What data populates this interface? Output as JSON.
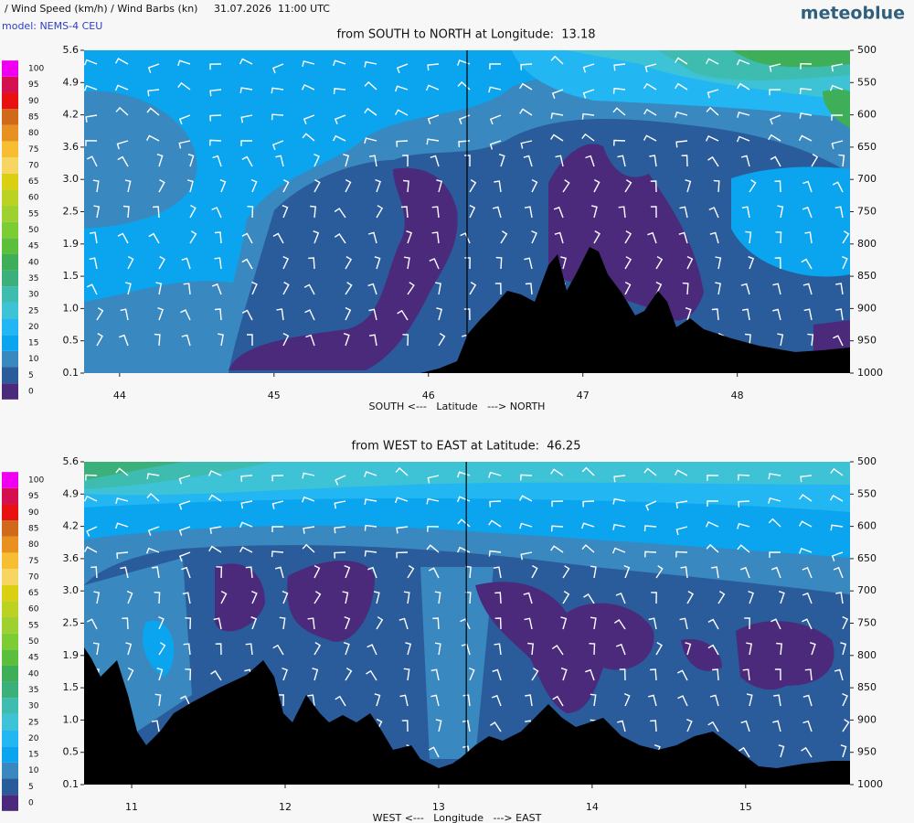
{
  "header": {
    "title": "/ Wind Speed (km/h) / Wind Barbs (kn)",
    "datetime": "31.07.2026  11:00 UTC",
    "brand": "meteoblue",
    "model": "model: NEMS-4 CEU"
  },
  "chart_data": [
    {
      "type": "contour",
      "title": "from SOUTH to NORTH at Longitude:  13.18",
      "x_label": "SOUTH <---   Latitude   ---> NORTH",
      "xlim": [
        43.77,
        48.73
      ],
      "xticks": [
        44,
        45,
        46,
        47,
        48
      ],
      "ylim": [
        1000,
        500
      ],
      "yticks": [
        500,
        550,
        600,
        650,
        700,
        750,
        800,
        850,
        900,
        950,
        1000
      ],
      "height_labels": [
        "5.6",
        "4.9",
        "4.2",
        "3.6",
        "3.0",
        "2.5",
        "1.9",
        "1.5",
        "1.0",
        "0.5",
        "0.1"
      ],
      "marker_x": 46.25,
      "levels": [
        0,
        5,
        10,
        15,
        20,
        25,
        30,
        35,
        40,
        45,
        50,
        55,
        60,
        65,
        70,
        75,
        80,
        85,
        90,
        95,
        100
      ],
      "colors": [
        "#4b2a7c",
        "#2a5b9b",
        "#3a88c0",
        "#0aa5ee",
        "#22b6f2",
        "#3ec2d6",
        "#3ebcb0",
        "#3bb07a",
        "#3fae58",
        "#5cbf3c",
        "#7ccc34",
        "#9ed030",
        "#bcd220",
        "#d8d010",
        "#f6d660",
        "#f6be30",
        "#e89020",
        "#d06a18",
        "#e81010",
        "#d41050",
        "#f000f0"
      ]
    },
    {
      "type": "contour",
      "title": "from WEST to EAST at Latitude:  46.25",
      "x_label": "WEST <---   Longitude   ---> EAST",
      "xlim": [
        10.69,
        15.68
      ],
      "xticks": [
        11,
        12,
        13,
        14,
        15
      ],
      "ylim": [
        1000,
        500
      ],
      "yticks": [
        500,
        550,
        600,
        650,
        700,
        750,
        800,
        850,
        900,
        950,
        1000
      ],
      "height_labels": [
        "5.6",
        "4.9",
        "4.2",
        "3.6",
        "3.0",
        "2.5",
        "1.9",
        "1.5",
        "1.0",
        "0.5",
        "0.1"
      ],
      "marker_x": 13.18,
      "levels": [
        0,
        5,
        10,
        15,
        20,
        25,
        30,
        35,
        40,
        45,
        50,
        55,
        60,
        65,
        70,
        75,
        80,
        85,
        90,
        95,
        100
      ],
      "colors": [
        "#4b2a7c",
        "#2a5b9b",
        "#3a88c0",
        "#0aa5ee",
        "#22b6f2",
        "#3ec2d6",
        "#3ebcb0",
        "#3bb07a",
        "#3fae58",
        "#5cbf3c",
        "#7ccc34",
        "#9ed030",
        "#bcd220",
        "#d8d010",
        "#f6d660",
        "#f6be30",
        "#e89020",
        "#d06a18",
        "#e81010",
        "#d41050",
        "#f000f0"
      ]
    }
  ]
}
